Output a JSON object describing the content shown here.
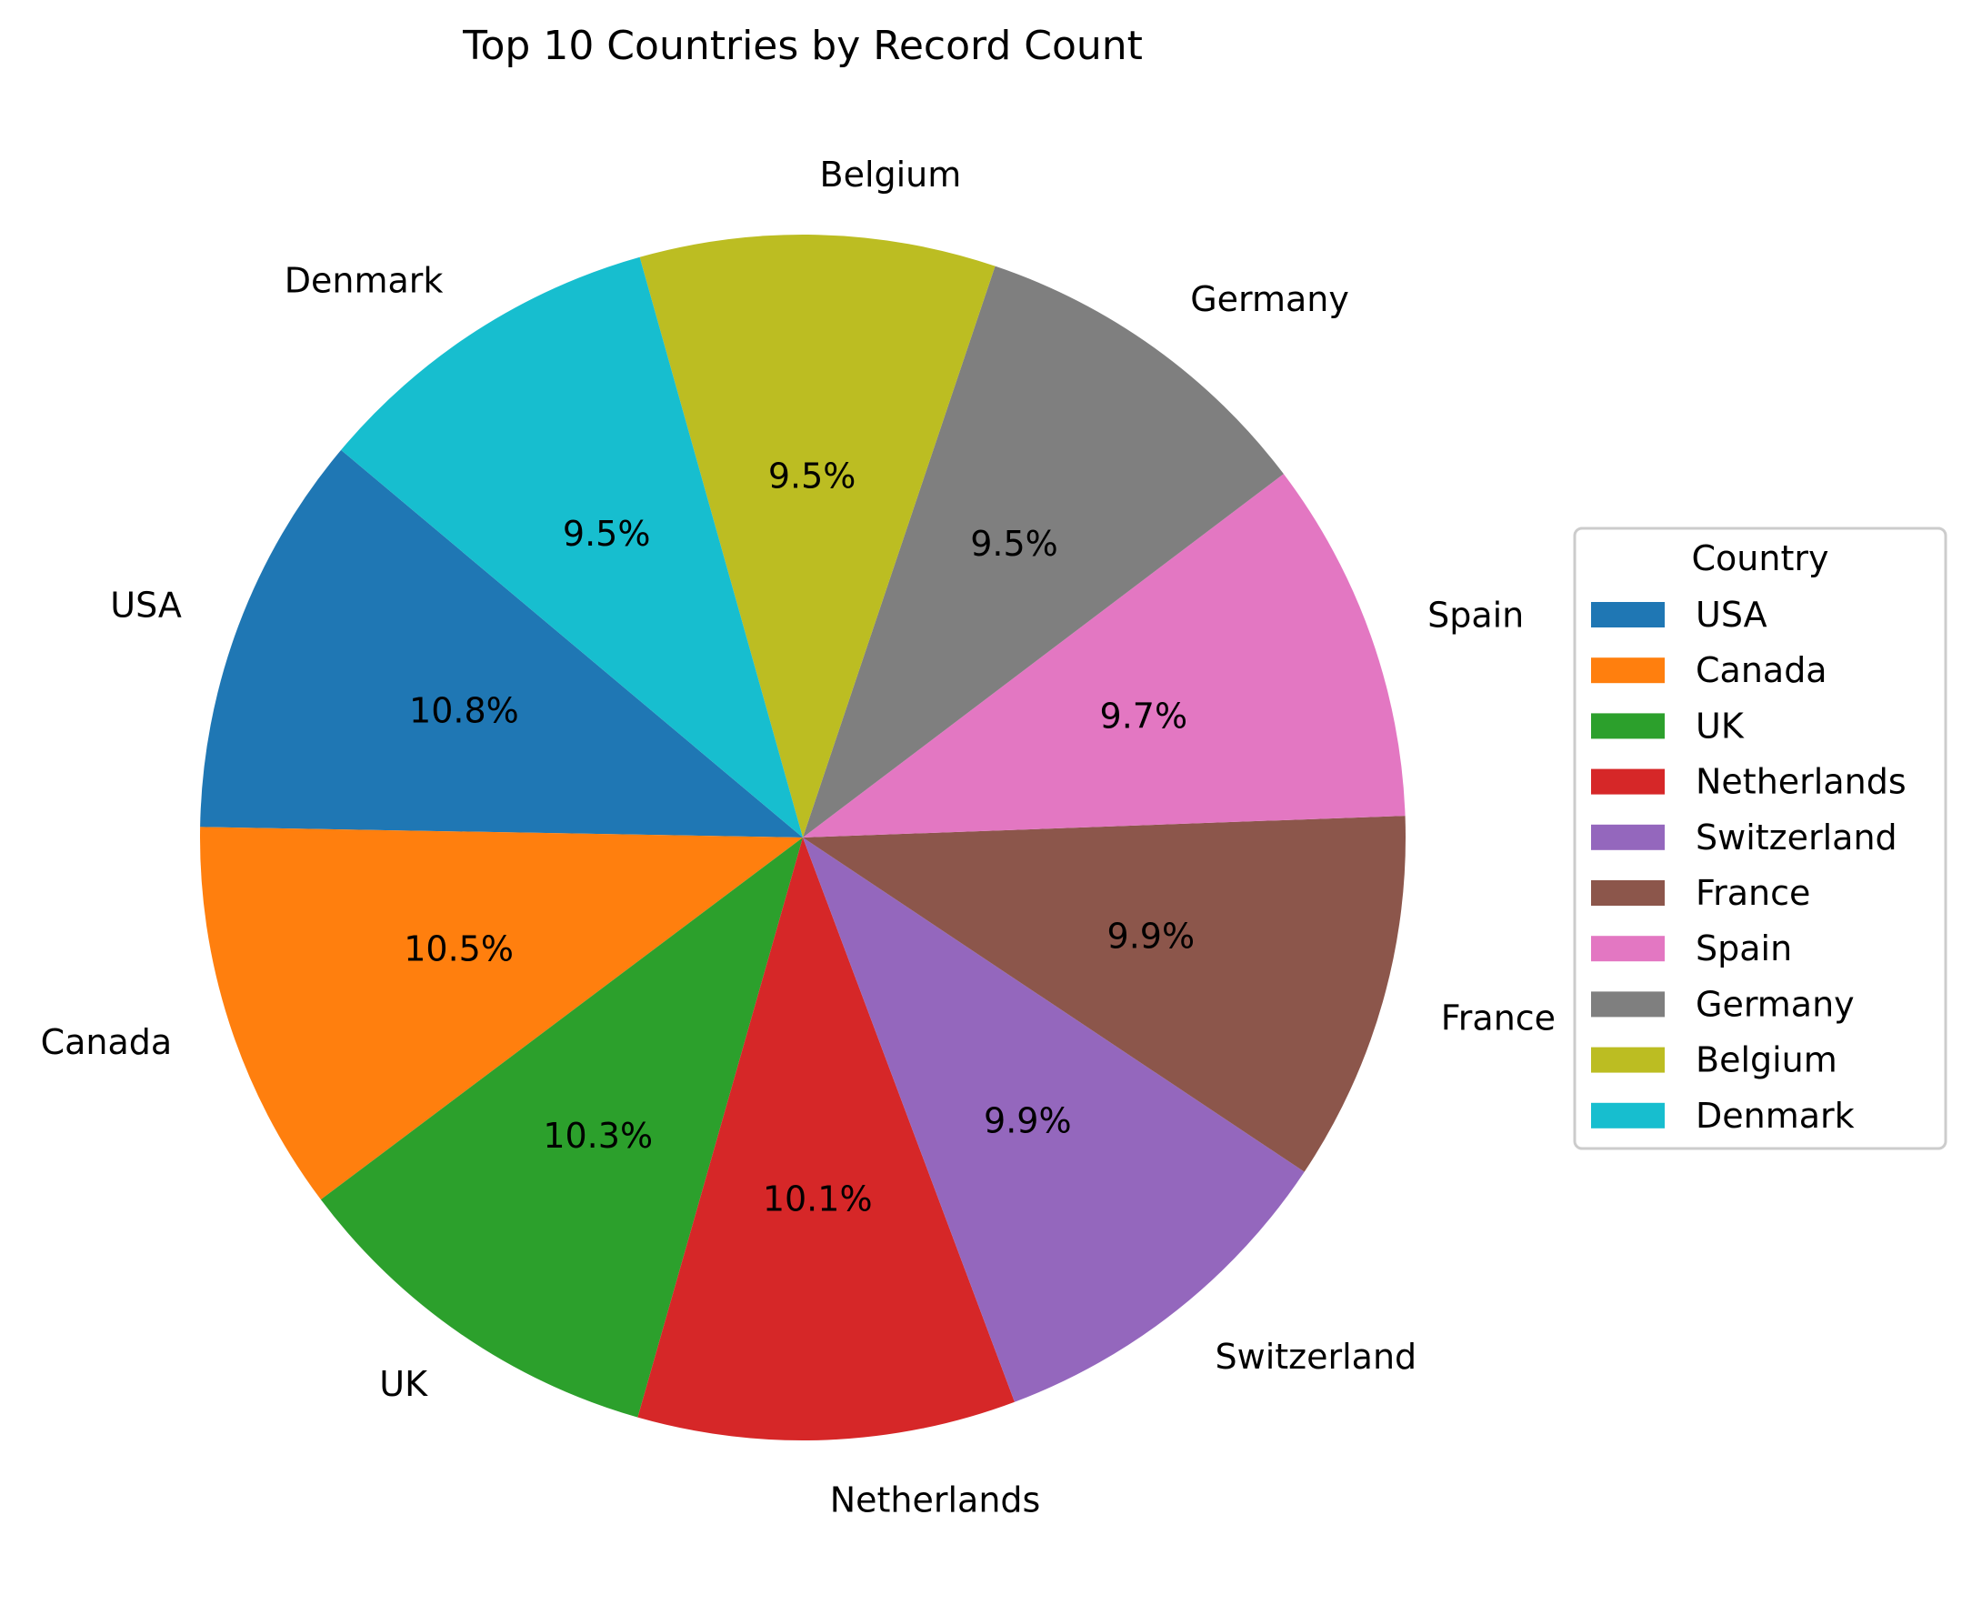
{
  "chart_data": {
    "type": "pie",
    "title": "Top 10 Countries by Record Count",
    "categories": [
      "USA",
      "Canada",
      "UK",
      "Netherlands",
      "Switzerland",
      "France",
      "Spain",
      "Germany",
      "Belgium",
      "Denmark"
    ],
    "values": [
      10.8,
      10.5,
      10.3,
      10.1,
      9.9,
      9.9,
      9.7,
      9.5,
      9.5,
      9.5
    ],
    "value_labels": [
      "10.8%",
      "10.5%",
      "10.3%",
      "10.1%",
      "9.9%",
      "9.9%",
      "9.7%",
      "9.5%",
      "9.5%",
      "9.5%"
    ],
    "colors": [
      "#1f77b4",
      "#ff7f0e",
      "#2ca02c",
      "#d62728",
      "#9467bd",
      "#8c564b",
      "#e377c2",
      "#7f7f7f",
      "#bcbd22",
      "#17becf"
    ],
    "start_angle_deg": 140,
    "direction": "counterclockwise",
    "legend": {
      "title": "Country",
      "placement": "right",
      "entries": [
        "USA",
        "Canada",
        "UK",
        "Netherlands",
        "Switzerland",
        "France",
        "Spain",
        "Germany",
        "Belgium",
        "Denmark"
      ]
    }
  }
}
